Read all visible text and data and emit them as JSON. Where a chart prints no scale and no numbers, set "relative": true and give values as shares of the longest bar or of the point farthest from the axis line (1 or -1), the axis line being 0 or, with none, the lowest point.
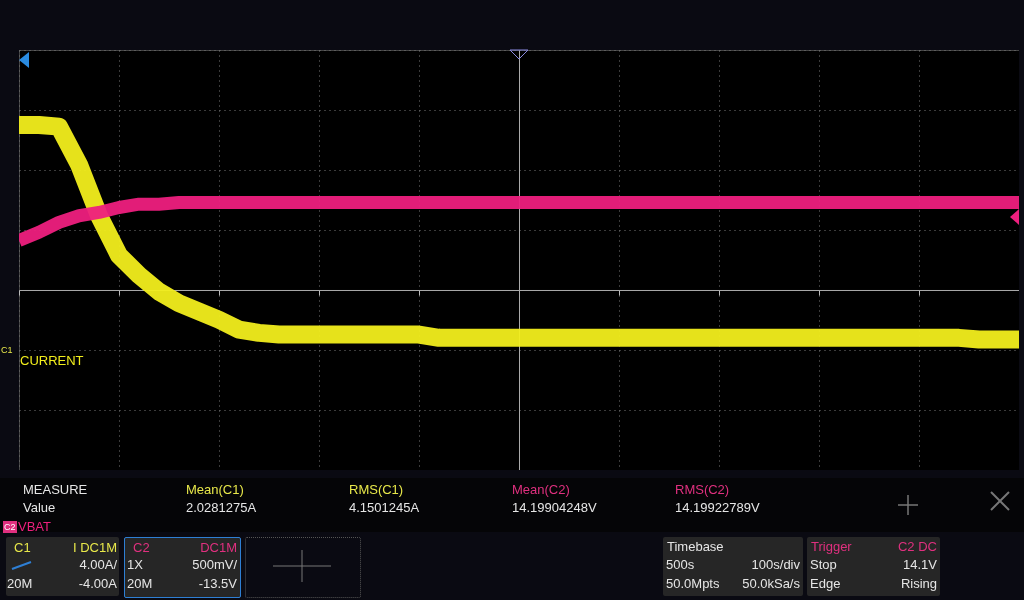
{
  "chart_data": {
    "type": "line",
    "relative": true,
    "grid": true,
    "line_style": "solid",
    "categories": [
      null,
      null,
      null,
      null,
      null,
      null,
      null,
      null,
      null,
      null,
      null,
      null,
      null,
      null,
      null,
      null,
      null,
      null,
      null,
      null,
      null,
      null,
      null,
      null,
      null,
      null,
      null,
      null,
      null,
      null,
      null,
      null,
      null,
      null,
      null,
      null,
      null,
      null,
      null,
      null,
      null,
      null,
      null,
      null,
      null,
      null,
      null,
      null,
      null,
      null,
      null
    ],
    "series": [
      {
        "name": "CURRENT",
        "color": "#f2ee1c",
        "values": [
          1.0,
          1.0,
          0.99,
          0.76,
          0.45,
          0.21,
          0.09,
          -0.01,
          -0.08,
          -0.13,
          -0.18,
          -0.24,
          -0.26,
          -0.27,
          -0.27,
          -0.27,
          -0.27,
          -0.27,
          -0.27,
          -0.27,
          -0.27,
          -0.29,
          -0.29,
          -0.29,
          -0.29,
          -0.29,
          -0.29,
          -0.29,
          -0.29,
          -0.29,
          -0.29,
          -0.29,
          -0.29,
          -0.29,
          -0.29,
          -0.29,
          -0.29,
          -0.29,
          -0.29,
          -0.29,
          -0.29,
          -0.29,
          -0.29,
          -0.29,
          -0.29,
          -0.29,
          -0.29,
          -0.29,
          -0.3,
          -0.3,
          -0.3
        ]
      },
      {
        "name": "VBAT",
        "color": "#ee1f7e",
        "values": [
          0.3,
          0.35,
          0.41,
          0.45,
          0.47,
          0.5,
          0.52,
          0.52,
          0.53,
          0.53,
          0.53,
          0.53,
          0.53,
          0.53,
          0.53,
          0.53,
          0.53,
          0.53,
          0.53,
          0.53,
          0.53,
          0.53,
          0.53,
          0.53,
          0.53,
          0.53,
          0.53,
          0.53,
          0.53,
          0.53,
          0.53,
          0.53,
          0.53,
          0.53,
          0.53,
          0.53,
          0.53,
          0.53,
          0.53,
          0.53,
          0.53,
          0.53,
          0.53,
          0.53,
          0.53,
          0.53,
          0.53,
          0.53,
          0.53,
          0.53,
          0.53
        ]
      }
    ],
    "annotations": [
      "MEASURE",
      "Value",
      "Mean(C1)",
      "2.0281275A",
      "RMS(C1)",
      "4.1501245A",
      "Mean(C2)",
      "14.19904248V",
      "RMS(C2)",
      "14.19922789V",
      "C1",
      "I DC1M",
      "4.00A/",
      "20M",
      "-4.00A",
      "C2",
      "DC1M",
      "1X",
      "500mV/",
      "20M",
      "-13.5V",
      "Timebase",
      "500s",
      "100s/div",
      "50.0Mpts",
      "50.0kSa/s",
      "Trigger",
      "C2 DC",
      "Stop",
      "14.1V",
      "Edge",
      "Rising",
      "C1",
      "C2"
    ]
  }
}
